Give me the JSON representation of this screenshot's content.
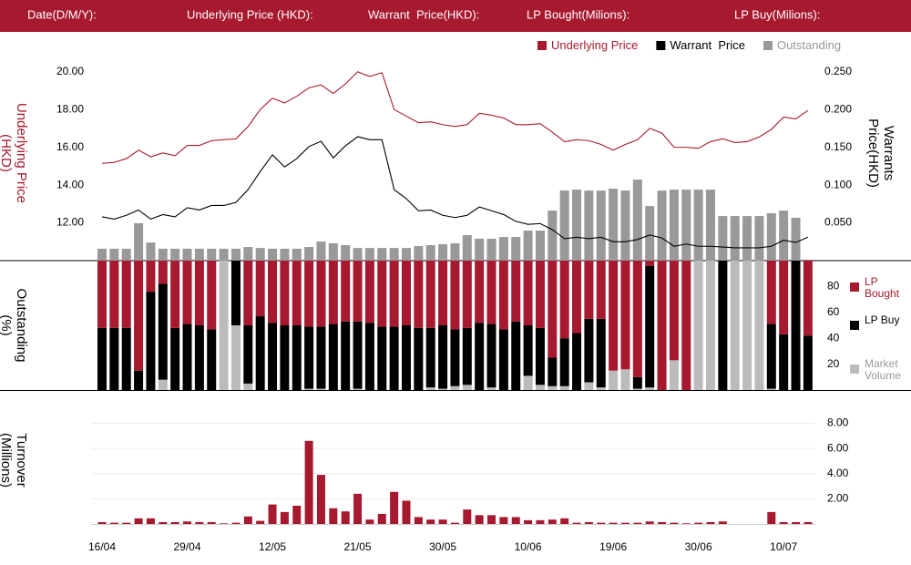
{
  "header": {
    "labels": [
      "Date(D/M/Y):",
      "Underlying Price (HKD):",
      "Warrant  Price(HKD):",
      "LP Bought(Milions):",
      "LP Buy(Milions):"
    ]
  },
  "chart_data": [
    {
      "type": "line",
      "ylabel": "Underlying Price (HKD)",
      "y2label": "Warrants  Price(HKD)",
      "ylim": [
        10,
        21
      ],
      "yticks": [
        {
          "value": 12,
          "label": "12.00"
        },
        {
          "value": 14,
          "label": "14.00"
        },
        {
          "value": 16,
          "label": "16.00"
        },
        {
          "value": 18,
          "label": "18.00"
        },
        {
          "value": 20,
          "label": "20.00"
        }
      ],
      "y2lim": [
        0,
        0.275
      ],
      "y2ticks": [
        {
          "value": 0.05,
          "label": "0.050"
        },
        {
          "value": 0.1,
          "label": "0.100"
        },
        {
          "value": 0.15,
          "label": "0.150"
        },
        {
          "value": 0.2,
          "label": "0.200"
        },
        {
          "value": 0.25,
          "label": "0.250"
        }
      ],
      "series": [
        {
          "name": "Underlying Price",
          "color": "#a6192e",
          "mark": "line",
          "values": [
            15.15,
            15.2,
            15.4,
            15.85,
            15.5,
            15.7,
            15.55,
            16.1,
            16.1,
            16.35,
            16.4,
            16.45,
            17.1,
            18.0,
            18.6,
            18.35,
            18.7,
            19.15,
            19.3,
            18.85,
            19.35,
            20.0,
            19.75,
            19.95,
            18.0,
            17.65,
            17.3,
            17.35,
            17.2,
            17.1,
            17.2,
            17.8,
            17.7,
            17.55,
            17.2,
            17.2,
            17.25,
            16.8,
            16.3,
            16.4,
            16.35,
            16.15,
            15.85,
            16.15,
            16.4,
            17.0,
            16.75,
            16.0,
            16.0,
            15.95,
            16.3,
            16.45,
            16.25,
            16.3,
            16.55,
            16.95,
            17.6,
            17.5,
            17.95
          ]
        },
        {
          "name": "Warrant  Price",
          "color": "#000000",
          "mark": "line",
          "axis": "y2",
          "values": [
            0.058,
            0.055,
            0.06,
            0.067,
            0.055,
            0.061,
            0.058,
            0.07,
            0.067,
            0.073,
            0.073,
            0.077,
            0.094,
            0.118,
            0.14,
            0.124,
            0.135,
            0.151,
            0.158,
            0.136,
            0.152,
            0.164,
            0.16,
            0.16,
            0.094,
            0.082,
            0.066,
            0.067,
            0.06,
            0.057,
            0.06,
            0.071,
            0.066,
            0.061,
            0.052,
            0.048,
            0.049,
            0.041,
            0.029,
            0.031,
            0.029,
            0.031,
            0.025,
            0.025,
            0.028,
            0.034,
            0.03,
            0.019,
            0.022,
            0.019,
            0.019,
            0.018,
            0.017,
            0.017,
            0.017,
            0.019,
            0.027,
            0.024,
            0.031
          ]
        },
        {
          "name": "Outstanding",
          "color": "#999999",
          "mark": "bar",
          "values": [
            10.63,
            10.63,
            10.63,
            11.98,
            10.96,
            10.63,
            10.63,
            10.63,
            10.63,
            10.63,
            10.63,
            10.63,
            10.72,
            10.67,
            10.63,
            10.63,
            10.63,
            10.72,
            11.01,
            10.92,
            10.82,
            10.67,
            10.67,
            10.67,
            10.67,
            10.67,
            10.77,
            10.82,
            10.87,
            10.92,
            11.35,
            11.16,
            11.16,
            11.25,
            11.25,
            11.59,
            11.59,
            12.65,
            13.71,
            13.76,
            13.71,
            13.71,
            13.81,
            13.71,
            14.29,
            12.89,
            13.71,
            13.76,
            13.76,
            13.76,
            13.76,
            12.36,
            12.36,
            12.36,
            12.36,
            12.51,
            12.65,
            12.27,
            null
          ]
        }
      ]
    },
    {
      "type": "stacked_bar",
      "ylabel": "Outstanding (%)",
      "ylim": [
        0,
        100
      ],
      "yticks": [
        20,
        40,
        60,
        80
      ],
      "series": [
        {
          "name": "LP Bought",
          "color": "#a6192e",
          "values": [
            52,
            52,
            52,
            85,
            24,
            18,
            52,
            49,
            50,
            53,
            0,
            0,
            50,
            43,
            48,
            50,
            50,
            51,
            51,
            49,
            47,
            47,
            48,
            51,
            51,
            50,
            52,
            52,
            50,
            53,
            52,
            48,
            49,
            53,
            47,
            50,
            52,
            75,
            60,
            56,
            45,
            45,
            85,
            84,
            90,
            4,
            100,
            77,
            100,
            0,
            0,
            0,
            0,
            0,
            0,
            49,
            57,
            0,
            58
          ]
        },
        {
          "name": "LP Buy",
          "color": "#000000",
          "values": [
            48,
            48,
            48,
            15,
            76,
            74,
            48,
            51,
            50,
            47,
            0,
            50,
            45,
            57,
            52,
            50,
            50,
            48,
            48,
            51,
            53,
            52,
            52,
            49,
            49,
            50,
            48,
            46,
            49,
            44,
            44,
            52,
            49,
            47,
            53,
            39,
            44,
            22,
            37,
            44,
            49,
            53,
            0,
            0,
            9,
            94,
            0,
            0,
            0,
            0,
            0,
            100,
            0,
            0,
            0,
            50,
            43,
            100,
            42
          ]
        },
        {
          "name": "Market Volume",
          "color": "#bbbbbb",
          "values": [
            0,
            0,
            0,
            0,
            0,
            8,
            0,
            0,
            0,
            0,
            100,
            50,
            5,
            0,
            0,
            0,
            0,
            1,
            1,
            0,
            0,
            1,
            0,
            0,
            0,
            0,
            0,
            2,
            1,
            3,
            4,
            0,
            2,
            0,
            0,
            11,
            4,
            3,
            3,
            0,
            6,
            2,
            15,
            16,
            1,
            2,
            0,
            23,
            0,
            100,
            100,
            0,
            100,
            100,
            100,
            1,
            0,
            0,
            0
          ]
        }
      ]
    },
    {
      "type": "bar",
      "ylabel": "Turnover (Millions)",
      "categories": [
        "16/04",
        null,
        null,
        null,
        null,
        null,
        null,
        "29/04",
        null,
        null,
        null,
        null,
        null,
        null,
        "12/05",
        null,
        null,
        null,
        null,
        null,
        null,
        "21/05",
        null,
        null,
        null,
        null,
        null,
        null,
        "30/05",
        null,
        null,
        null,
        null,
        null,
        null,
        "10/06",
        null,
        null,
        null,
        null,
        null,
        null,
        "19/06",
        null,
        null,
        null,
        null,
        null,
        null,
        "30/06",
        null,
        null,
        null,
        null,
        null,
        null,
        "10/07",
        null,
        null
      ],
      "values": [
        0.15,
        0.1,
        0.1,
        0.45,
        0.45,
        0.15,
        0.15,
        0.2,
        0.15,
        0.15,
        0.05,
        0.1,
        0.6,
        0.25,
        1.55,
        0.95,
        1.45,
        6.6,
        3.9,
        1.25,
        1.0,
        2.4,
        0.35,
        0.8,
        2.55,
        1.85,
        0.55,
        0.35,
        0.35,
        0.1,
        1.15,
        0.7,
        0.7,
        0.55,
        0.55,
        0.3,
        0.3,
        0.35,
        0.45,
        0.1,
        0.15,
        0.1,
        0.1,
        0.1,
        0.1,
        0.2,
        0.15,
        0.1,
        0.05,
        0.1,
        0.15,
        0.2,
        0,
        0,
        0,
        0.95,
        0.15,
        0.15,
        0.15
      ],
      "color": "#a6192e",
      "ylim": [
        0,
        8.9
      ],
      "yticks": [
        {
          "value": 2,
          "label": "2.00"
        },
        {
          "value": 4,
          "label": "4.00"
        },
        {
          "value": 6,
          "label": "6.00"
        },
        {
          "value": 8,
          "label": "8.00"
        }
      ],
      "grid": true
    }
  ]
}
